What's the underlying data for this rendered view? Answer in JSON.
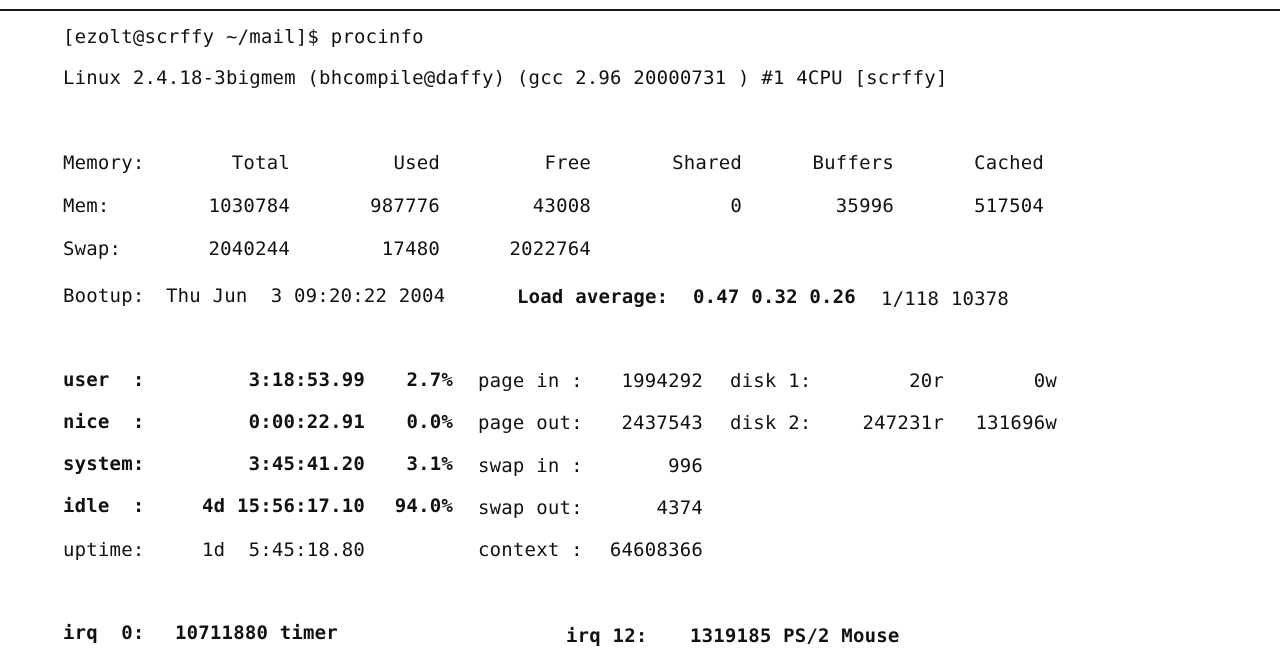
{
  "terminal": {
    "prompt_line": "[ezolt@scrffy ~/mail]$ procinfo",
    "kernel_line": "Linux 2.4.18-3bigmem (bhcompile@daffy) (gcc 2.96 20000731 ) #1 4CPU [scrffy]"
  },
  "memory": {
    "headers": [
      "Memory:",
      "Total",
      "Used",
      "Free",
      "Shared",
      "Buffers",
      "Cached"
    ],
    "mem": {
      "label": "Mem:",
      "total": "1030784",
      "used": "987776",
      "free": "43008",
      "shared": "0",
      "buffers": "35996",
      "cached": "517504"
    },
    "swap": {
      "label": "Swap:",
      "total": "2040244",
      "used": "17480",
      "free": "2022764"
    }
  },
  "bootup": {
    "label": "Bootup:",
    "date": "Thu Jun  3 09:20:22 2004",
    "load_label": "Load average:",
    "load_values": "0.47 0.32 0.26",
    "procs": "1/118 10378"
  },
  "cpu": [
    {
      "label": "user  :",
      "time": "3:18:53.99",
      "pct": "2.7%"
    },
    {
      "label": "nice  :",
      "time": "0:00:22.91",
      "pct": "0.0%"
    },
    {
      "label": "system:",
      "time": "3:45:41.20",
      "pct": "3.1%"
    },
    {
      "label": "idle  :",
      "time": "4d 15:56:17.10",
      "pct": "94.0%"
    },
    {
      "label": "uptime:",
      "time": "1d  5:45:18.80",
      "pct": ""
    }
  ],
  "paging": [
    {
      "label": "page in :",
      "value": "1994292"
    },
    {
      "label": "page out:",
      "value": "2437543"
    },
    {
      "label": "swap in :",
      "value": "996"
    },
    {
      "label": "swap out:",
      "value": "4374"
    },
    {
      "label": "context :",
      "value": "64608366"
    }
  ],
  "disks": [
    {
      "label": "disk 1:",
      "reads": "20r",
      "writes": "0w"
    },
    {
      "label": "disk 2:",
      "reads": "247231r",
      "writes": "131696w"
    }
  ],
  "irq": [
    {
      "label": "irq  0:",
      "value": "10711880 timer"
    },
    {
      "label": "irq 12:",
      "value": "1319185 PS/2 Mouse"
    }
  ]
}
